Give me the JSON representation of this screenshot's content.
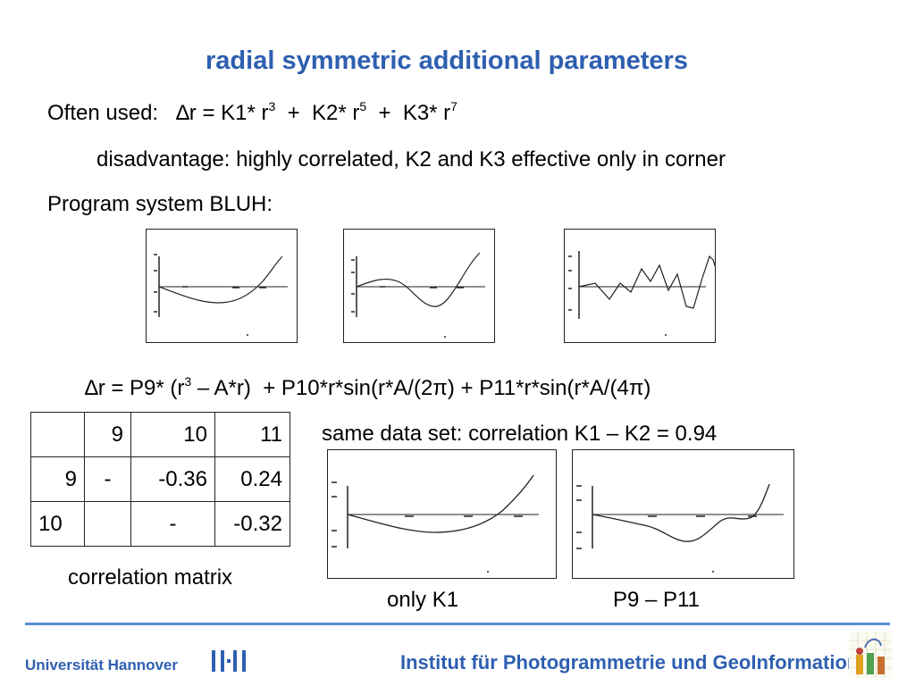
{
  "title": "radial symmetric additional parameters",
  "formula1": {
    "label": "Often used:",
    "delta": "∆",
    "p1": "r = K1* r",
    "e1": "3",
    "p2": "  +  K2* r",
    "e2": "5",
    "p3": "  +  K3* r",
    "e3": "7"
  },
  "disadvantage": "disadvantage: highly correlated, K2 and K3 effective only in corner",
  "program_label": "Program system BLUH:",
  "formula2": {
    "delta": "∆",
    "p1": "r = P9* (r",
    "e1": "3",
    "p2": " – A*r)  + P10*r*sin(r*A/(2",
    "pi1": "π",
    "p3": ") + P11*r*sin(r*A/(4",
    "pi2": "π",
    "p4": ")"
  },
  "matrix": {
    "header": [
      "",
      "9",
      "10",
      "11"
    ],
    "rows": [
      [
        "9",
        "-",
        "-0.36",
        "0.24"
      ],
      [
        "10",
        "",
        "-",
        "-0.32"
      ]
    ]
  },
  "matrix_caption": "correlation matrix",
  "same_data": "same data set: correlation K1 – K2 = 0.94",
  "caption_k1": "only K1",
  "caption_p9": "P9 – P11",
  "footer": {
    "university": "Universität Hannover",
    "institute": "Institut für Photogrammetrie und GeoInformation"
  },
  "colors": {
    "title": "#2e5fb0",
    "rule": "#5b8fd6"
  }
}
